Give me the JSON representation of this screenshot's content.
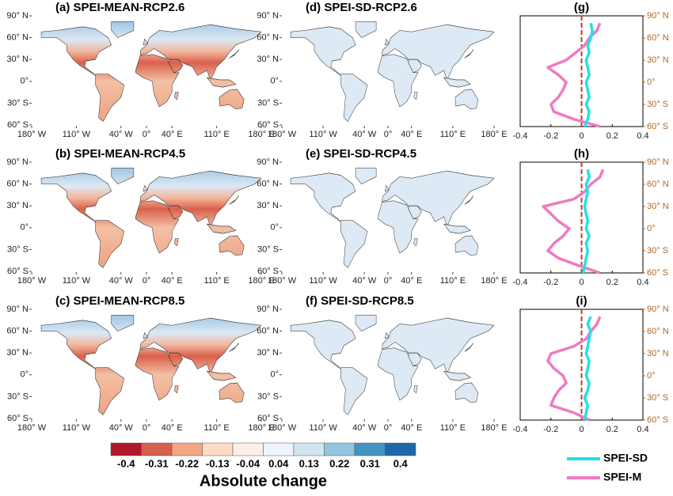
{
  "chart_data": [
    {
      "type": "map",
      "title": "(a) SPEI-MEAN-RCP2.6",
      "xlim": [
        -180,
        180
      ],
      "xticks": [
        {
          "value": -180,
          "label": "180° W"
        },
        {
          "value": -110,
          "label": "110° W"
        },
        {
          "value": -40,
          "label": "40° W"
        },
        {
          "value": 0,
          "label": "0°"
        },
        {
          "value": 40,
          "label": "40° E"
        },
        {
          "value": 110,
          "label": "110° E"
        },
        {
          "value": 180,
          "label": "180° E"
        }
      ],
      "ylim": [
        -60,
        90
      ],
      "yticks": [
        {
          "value": 90,
          "label": "90° N"
        },
        {
          "value": 60,
          "label": "60° N"
        },
        {
          "value": 30,
          "label": "30° N"
        },
        {
          "value": 0,
          "label": "0°"
        },
        {
          "value": -30,
          "label": "30° S"
        },
        {
          "value": -60,
          "label": "60° S"
        }
      ]
    },
    {
      "type": "map",
      "title": "(b) SPEI-MEAN-RCP4.5",
      "xlim": [
        -180,
        180
      ],
      "xticks": [
        {
          "value": -180,
          "label": "180° W"
        },
        {
          "value": -110,
          "label": "110° W"
        },
        {
          "value": -40,
          "label": "40° W"
        },
        {
          "value": 0,
          "label": "0°"
        },
        {
          "value": 40,
          "label": "40° E"
        },
        {
          "value": 110,
          "label": "110° E"
        },
        {
          "value": 180,
          "label": "180° E"
        }
      ],
      "ylim": [
        -60,
        90
      ],
      "yticks": [
        {
          "value": 90,
          "label": "90° N"
        },
        {
          "value": 60,
          "label": "60° N"
        },
        {
          "value": 30,
          "label": "30° N"
        },
        {
          "value": 0,
          "label": "0°"
        },
        {
          "value": -30,
          "label": "30° S"
        },
        {
          "value": -60,
          "label": "60° S"
        }
      ]
    },
    {
      "type": "map",
      "title": "(c) SPEI-MEAN-RCP8.5",
      "xlim": [
        -180,
        180
      ],
      "xticks": [
        {
          "value": -180,
          "label": "180° W"
        },
        {
          "value": -110,
          "label": "110° W"
        },
        {
          "value": -40,
          "label": "40° W"
        },
        {
          "value": 0,
          "label": "0°"
        },
        {
          "value": 40,
          "label": "40° E"
        },
        {
          "value": 110,
          "label": "110° E"
        },
        {
          "value": 180,
          "label": "180° E"
        }
      ],
      "ylim": [
        -60,
        90
      ],
      "yticks": [
        {
          "value": 90,
          "label": "90° N"
        },
        {
          "value": 60,
          "label": "60° N"
        },
        {
          "value": 30,
          "label": "30° N"
        },
        {
          "value": 0,
          "label": "0°"
        },
        {
          "value": -30,
          "label": "30° S"
        },
        {
          "value": -60,
          "label": "60° S"
        }
      ]
    },
    {
      "type": "map",
      "title": "(d) SPEI-SD-RCP2.6",
      "xlim": [
        -180,
        180
      ],
      "xticks": [
        {
          "value": -180,
          "label": "180° W"
        },
        {
          "value": -110,
          "label": "110° W"
        },
        {
          "value": -40,
          "label": "40° W"
        },
        {
          "value": 0,
          "label": "0°"
        },
        {
          "value": 40,
          "label": "40° E"
        },
        {
          "value": 110,
          "label": "110° E"
        },
        {
          "value": 180,
          "label": "180° E"
        }
      ],
      "ylim": [
        -60,
        90
      ],
      "yticks": [
        {
          "value": 90,
          "label": "90° N"
        },
        {
          "value": 60,
          "label": "60° N"
        },
        {
          "value": 30,
          "label": "30° N"
        },
        {
          "value": 0,
          "label": "0°"
        },
        {
          "value": -30,
          "label": "30° S"
        },
        {
          "value": -60,
          "label": "60° S"
        }
      ]
    },
    {
      "type": "map",
      "title": "(e) SPEI-SD-RCP4.5",
      "xlim": [
        -180,
        180
      ],
      "xticks": [
        {
          "value": -180,
          "label": "180° W"
        },
        {
          "value": -110,
          "label": "110° W"
        },
        {
          "value": -40,
          "label": "40° W"
        },
        {
          "value": 0,
          "label": "0°"
        },
        {
          "value": 40,
          "label": "40° E"
        },
        {
          "value": 110,
          "label": "110° E"
        },
        {
          "value": 180,
          "label": "180° E"
        }
      ],
      "ylim": [
        -60,
        90
      ],
      "yticks": [
        {
          "value": 90,
          "label": "90° N"
        },
        {
          "value": 60,
          "label": "60° N"
        },
        {
          "value": 30,
          "label": "30° N"
        },
        {
          "value": 0,
          "label": "0°"
        },
        {
          "value": -30,
          "label": "30° S"
        },
        {
          "value": -60,
          "label": "60° S"
        }
      ]
    },
    {
      "type": "map",
      "title": "(f) SPEI-SD-RCP8.5",
      "xlim": [
        -180,
        180
      ],
      "xticks": [
        {
          "value": -180,
          "label": "180° W"
        },
        {
          "value": -110,
          "label": "110° W"
        },
        {
          "value": -40,
          "label": "40° W"
        },
        {
          "value": 0,
          "label": "0°"
        },
        {
          "value": 40,
          "label": "40° E"
        },
        {
          "value": 110,
          "label": "110° E"
        },
        {
          "value": 180,
          "label": "180° E"
        }
      ],
      "ylim": [
        -60,
        90
      ],
      "yticks": [
        {
          "value": 90,
          "label": "90° N"
        },
        {
          "value": 60,
          "label": "60° N"
        },
        {
          "value": 30,
          "label": "30° N"
        },
        {
          "value": 0,
          "label": "0°"
        },
        {
          "value": -30,
          "label": "30° S"
        },
        {
          "value": -60,
          "label": "60° S"
        }
      ]
    },
    {
      "type": "line",
      "title": "(g)",
      "xlim": [
        -0.4,
        0.4
      ],
      "xticks": [
        -0.4,
        -0.2,
        0,
        0.2,
        0.4
      ],
      "y2lim": [
        -60,
        90
      ],
      "y2ticks": [
        {
          "value": 90,
          "label": "90° N"
        },
        {
          "value": 60,
          "label": "60° N"
        },
        {
          "value": 30,
          "label": "30° N"
        },
        {
          "value": 0,
          "label": "0°"
        },
        {
          "value": -30,
          "label": "30° S"
        },
        {
          "value": -60,
          "label": "60° S"
        }
      ],
      "y": [
        -60,
        -50,
        -40,
        -30,
        -20,
        -10,
        0,
        10,
        20,
        30,
        40,
        50,
        60,
        70,
        80
      ],
      "series": [
        {
          "name": "SPEI-SD",
          "color": "#22e0e8",
          "values": [
            0.02,
            0.04,
            0.05,
            0.03,
            0.05,
            0.04,
            0.03,
            0.05,
            0.04,
            0.03,
            0.05,
            0.04,
            0.06,
            0.07,
            0.06
          ]
        },
        {
          "name": "SPEI-M",
          "color": "#f07ac0",
          "values": [
            0.12,
            -0.05,
            -0.18,
            -0.2,
            -0.15,
            -0.12,
            -0.1,
            -0.15,
            -0.22,
            -0.1,
            -0.04,
            0.02,
            0.05,
            0.1,
            0.12
          ]
        }
      ]
    },
    {
      "type": "line",
      "title": "(h)",
      "xlim": [
        -0.4,
        0.4
      ],
      "xticks": [
        -0.4,
        -0.2,
        0,
        0.2,
        0.4
      ],
      "y2lim": [
        -60,
        90
      ],
      "y2ticks": [
        {
          "value": 90,
          "label": "90° N"
        },
        {
          "value": 60,
          "label": "60° N"
        },
        {
          "value": 30,
          "label": "30° N"
        },
        {
          "value": 0,
          "label": "0°"
        },
        {
          "value": -30,
          "label": "30° S"
        },
        {
          "value": -60,
          "label": "60° S"
        }
      ],
      "y": [
        -60,
        -50,
        -40,
        -30,
        -20,
        -10,
        0,
        10,
        20,
        30,
        40,
        50,
        60,
        70,
        80
      ],
      "series": [
        {
          "color": "#22e0e8",
          "values": [
            0.01,
            0.02,
            0.03,
            0.04,
            0.03,
            0.05,
            0.03,
            0.04,
            0.03,
            0.02,
            0.03,
            0.04,
            0.03,
            0.05,
            0.04
          ]
        },
        {
          "color": "#f07ac0",
          "values": [
            0.12,
            -0.02,
            -0.15,
            -0.22,
            -0.18,
            -0.12,
            -0.08,
            -0.15,
            -0.2,
            -0.25,
            -0.05,
            0.02,
            0.06,
            0.12,
            0.14
          ]
        }
      ]
    },
    {
      "type": "line",
      "title": "(i)",
      "xlim": [
        -0.4,
        0.4
      ],
      "xticks": [
        -0.4,
        -0.2,
        0,
        0.2,
        0.4
      ],
      "y2lim": [
        -60,
        90
      ],
      "y2ticks": [
        {
          "value": 90,
          "label": "90° N"
        },
        {
          "value": 60,
          "label": "60° N"
        },
        {
          "value": 30,
          "label": "30° N"
        },
        {
          "value": 0,
          "label": "0°"
        },
        {
          "value": -30,
          "label": "30° S"
        },
        {
          "value": -60,
          "label": "60° S"
        }
      ],
      "y": [
        -60,
        -50,
        -40,
        -30,
        -20,
        -10,
        0,
        10,
        20,
        30,
        40,
        50,
        60,
        70,
        80
      ],
      "series": [
        {
          "color": "#22e0e8",
          "values": [
            0.02,
            0.03,
            0.04,
            0.02,
            0.04,
            0.05,
            0.03,
            0.04,
            0.05,
            0.03,
            0.04,
            0.05,
            0.06,
            0.04,
            0.06
          ]
        },
        {
          "color": "#f07ac0",
          "values": [
            0.05,
            -0.05,
            -0.2,
            -0.18,
            -0.15,
            -0.1,
            -0.12,
            -0.18,
            -0.22,
            -0.2,
            -0.05,
            0.03,
            0.06,
            0.1,
            0.12
          ]
        }
      ]
    }
  ],
  "colorbar": {
    "label": "Absolute change",
    "ticks": [
      -0.4,
      -0.31,
      -0.22,
      -0.13,
      -0.04,
      0.04,
      0.13,
      0.22,
      0.31,
      0.4
    ],
    "colors": [
      "#b2182b",
      "#d6604d",
      "#f4a582",
      "#fddbc7",
      "#fbefe8",
      "#eef4fa",
      "#d1e5f0",
      "#92c5de",
      "#4393c3",
      "#2166ac"
    ]
  }
}
